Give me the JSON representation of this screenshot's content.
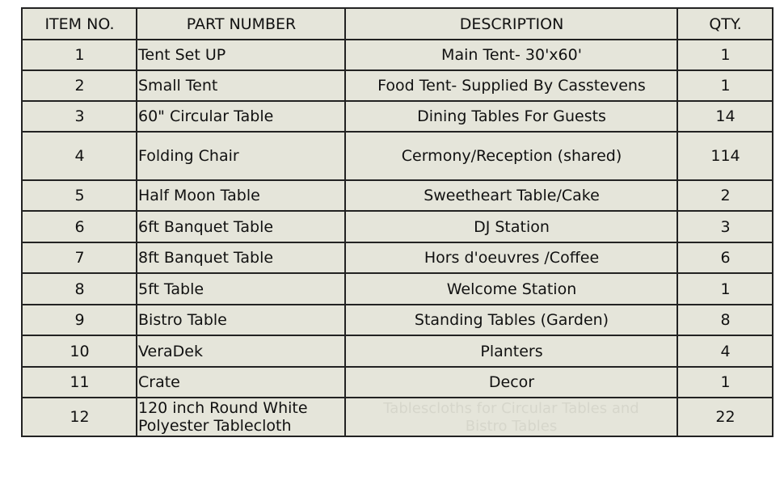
{
  "headers": [
    "ITEM NO.",
    "PART NUMBER",
    "DESCRIPTION",
    "QTY."
  ],
  "rows": [
    {
      "item": "1",
      "part": "Tent Set UP",
      "description": "Main Tent- 30'x60'",
      "qty": "1"
    },
    {
      "item": "2",
      "part": "Small Tent",
      "description": "Food Tent- Supplied By Casstevens",
      "qty": "1"
    },
    {
      "item": "3",
      "part": "60\" Circular Table",
      "description": "Dining Tables For Guests",
      "qty": "14"
    },
    {
      "item": "4",
      "part": "Folding Chair",
      "description": "Cermony/Reception (shared)",
      "qty": "114"
    },
    {
      "item": "5",
      "part": "Half Moon Table",
      "description": "Sweetheart Table/Cake",
      "qty": "2"
    },
    {
      "item": "6",
      "part": "6ft Banquet Table",
      "description": "DJ Station",
      "qty": "3"
    },
    {
      "item": "7",
      "part": "8ft Banquet Table",
      "description": "Hors d'oeuvres /Coffee",
      "qty": "6"
    },
    {
      "item": "8",
      "part": "5ft Table",
      "description": "Welcome Station",
      "qty": "1"
    },
    {
      "item": "9",
      "part": "Bistro Table",
      "description": "Standing Tables (Garden)",
      "qty": "8"
    },
    {
      "item": "10",
      "part": "VeraDek",
      "description": "Planters",
      "qty": "4"
    },
    {
      "item": "11",
      "part": "Crate",
      "description": "Decor",
      "qty": "1"
    },
    {
      "item": "12",
      "part": "120 inch Round White Polyester Tablecloth",
      "description": "Tablescloths for Circular Tables and Bistro Tables",
      "qty": "22"
    }
  ]
}
